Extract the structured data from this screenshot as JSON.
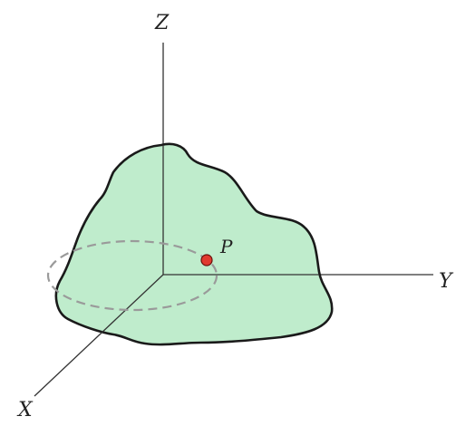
{
  "axes": {
    "z_label": "Z",
    "y_label": "Y",
    "x_label": "X"
  },
  "point": {
    "label": "P",
    "color": "#e03a2f"
  },
  "body": {
    "fill_color": "#bfeccc",
    "outline_color": "#1a1a1a"
  },
  "orbit": {
    "color": "#9a9a9a"
  }
}
